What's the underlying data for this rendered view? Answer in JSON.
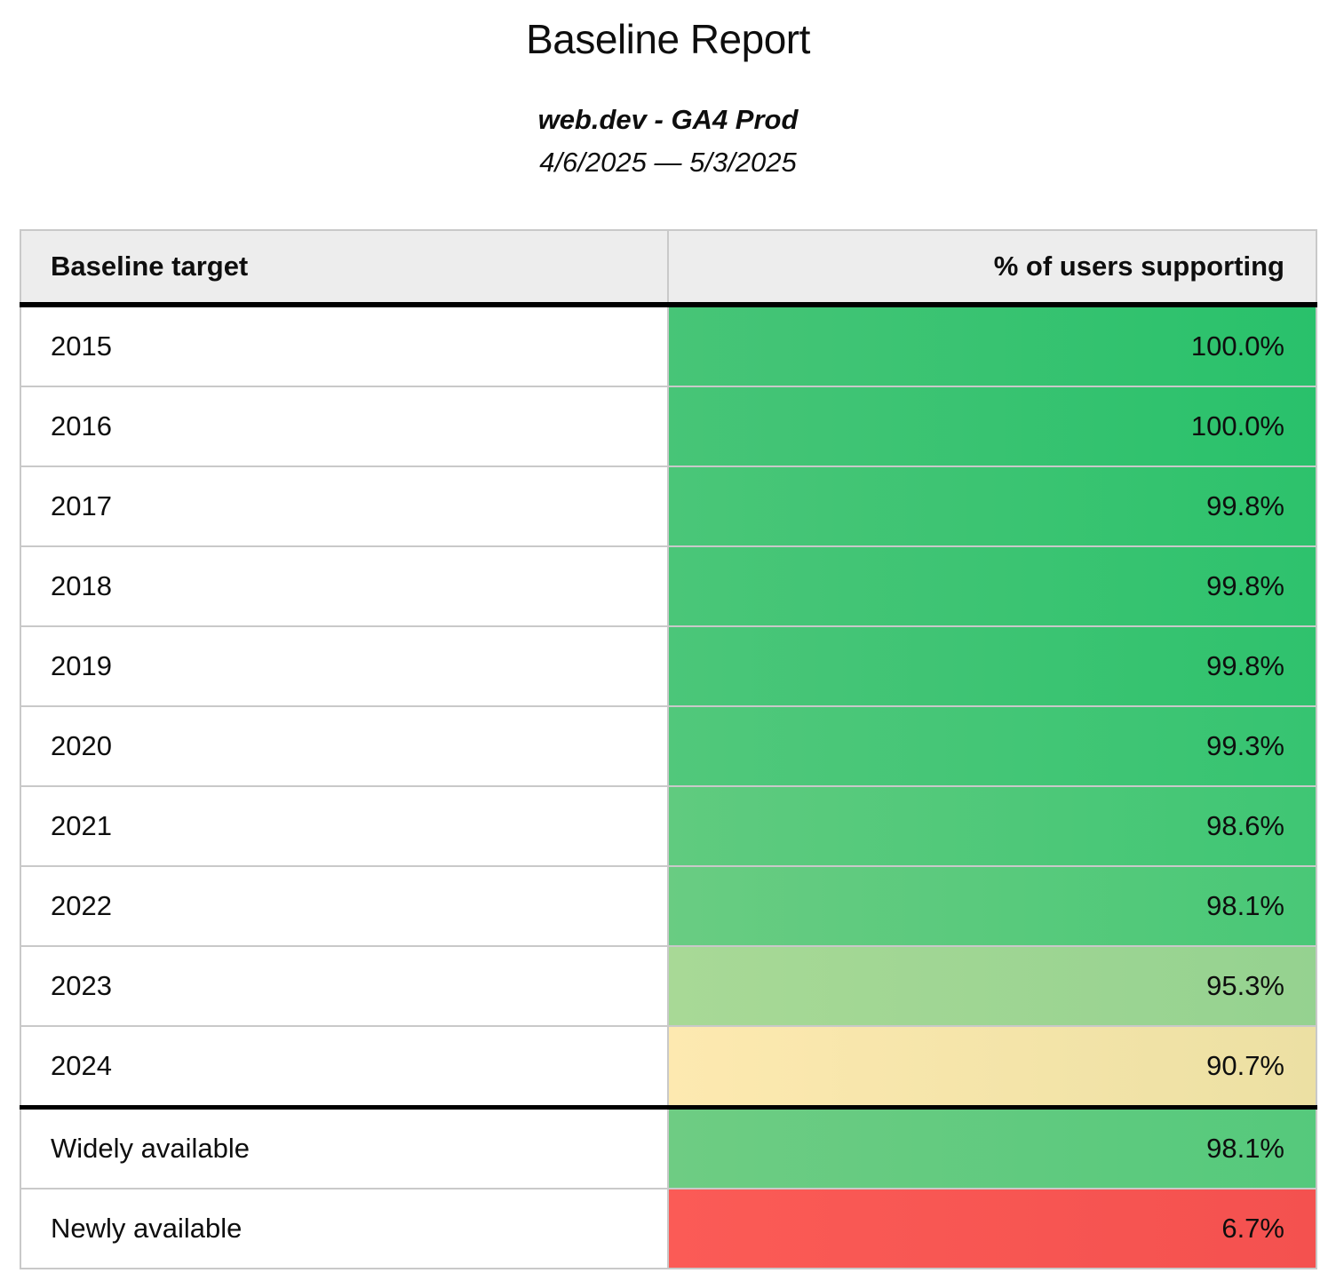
{
  "page": {
    "title": "Baseline Report",
    "subtitle": "web.dev - GA4 Prod",
    "date_range": "4/6/2025 — 5/3/2025"
  },
  "table": {
    "columns": [
      {
        "label": "Baseline target"
      },
      {
        "label": "% of users supporting"
      }
    ],
    "rows": [
      {
        "target": "2015",
        "value": "100.0%",
        "color_left": "#47c577",
        "color_right": "#29c16b",
        "separator_above": false
      },
      {
        "target": "2016",
        "value": "100.0%",
        "color_left": "#47c577",
        "color_right": "#29c16b",
        "separator_above": false
      },
      {
        "target": "2017",
        "value": "99.8%",
        "color_left": "#4ac678",
        "color_right": "#2dc26c",
        "separator_above": false
      },
      {
        "target": "2018",
        "value": "99.8%",
        "color_left": "#4ac678",
        "color_right": "#2ec26d",
        "separator_above": false
      },
      {
        "target": "2019",
        "value": "99.8%",
        "color_left": "#4bc679",
        "color_right": "#2fc26d",
        "separator_above": false
      },
      {
        "target": "2020",
        "value": "99.3%",
        "color_left": "#51c87b",
        "color_right": "#36c471",
        "separator_above": false
      },
      {
        "target": "2021",
        "value": "98.6%",
        "color_left": "#60cb7f",
        "color_right": "#3fc674",
        "separator_above": false
      },
      {
        "target": "2022",
        "value": "98.1%",
        "color_left": "#69cc82",
        "color_right": "#49c877",
        "separator_above": false
      },
      {
        "target": "2023",
        "value": "95.3%",
        "color_left": "#a8d996",
        "color_right": "#95d290",
        "separator_above": false
      },
      {
        "target": "2024",
        "value": "90.7%",
        "color_left": "#fde9b0",
        "color_right": "#ece0a3",
        "separator_above": false
      },
      {
        "target": "Widely available",
        "value": "98.1%",
        "color_left": "#6ecc83",
        "color_right": "#55c97c",
        "separator_above": true
      },
      {
        "target": "Newly available",
        "value": "6.7%",
        "color_left": "#fb5b56",
        "color_right": "#f4514f",
        "separator_above": false
      }
    ]
  },
  "colors": {
    "header_bg": "#ededed",
    "grid_line": "#c9c9c9",
    "section_separator": "#000000",
    "scale_high": "#29c16b",
    "scale_mid": "#ece0a3",
    "scale_low": "#f4514f"
  },
  "chart_data": {
    "type": "table",
    "title": "Baseline Report",
    "subtitle": "web.dev - GA4 Prod",
    "date_range": "4/6/2025 — 5/3/2025",
    "columns": [
      "Baseline target",
      "% of users supporting"
    ],
    "categories": [
      "2015",
      "2016",
      "2017",
      "2018",
      "2019",
      "2020",
      "2021",
      "2022",
      "2023",
      "2024",
      "Widely available",
      "Newly available"
    ],
    "values": [
      100.0,
      100.0,
      99.8,
      99.8,
      99.8,
      99.3,
      98.6,
      98.1,
      95.3,
      90.7,
      98.1,
      6.7
    ],
    "value_unit": "%",
    "value_range": [
      0,
      100
    ],
    "color_encoding": "cell background: green = high support, yellow = mid, red = low"
  }
}
